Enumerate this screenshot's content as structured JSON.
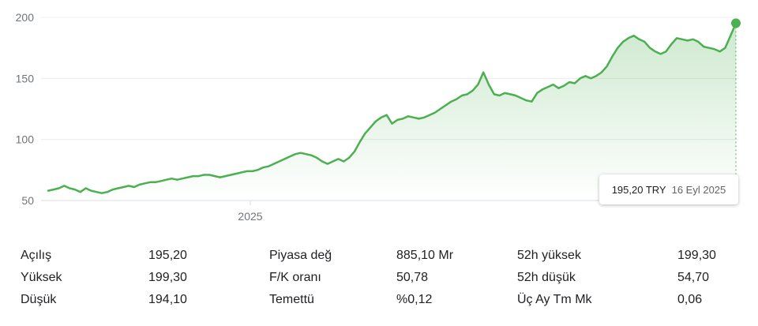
{
  "chart_data": {
    "type": "area",
    "ylim": [
      50,
      200
    ],
    "yticks": [
      50,
      100,
      150,
      200
    ],
    "xtick_labels": [
      "2025"
    ],
    "grid": true,
    "line_color": "#4caf50",
    "fill_color": "#4caf50",
    "values": [
      58,
      59,
      60,
      62,
      60,
      59,
      57,
      60,
      58,
      57,
      56,
      57,
      59,
      60,
      61,
      62,
      61,
      63,
      64,
      65,
      65,
      66,
      67,
      68,
      67,
      68,
      69,
      70,
      70,
      71,
      71,
      70,
      69,
      70,
      71,
      72,
      73,
      74,
      74,
      75,
      77,
      78,
      80,
      82,
      84,
      86,
      88,
      89,
      88,
      87,
      85,
      82,
      80,
      82,
      84,
      82,
      85,
      90,
      98,
      105,
      110,
      115,
      118,
      120,
      113,
      116,
      117,
      119,
      118,
      117,
      118,
      120,
      122,
      125,
      128,
      131,
      133,
      136,
      137,
      140,
      145,
      155,
      145,
      137,
      136,
      138,
      137,
      136,
      134,
      132,
      131,
      138,
      141,
      143,
      145,
      142,
      144,
      147,
      146,
      150,
      152,
      150,
      152,
      155,
      160,
      168,
      175,
      180,
      183,
      185,
      182,
      180,
      175,
      172,
      170,
      172,
      178,
      183,
      182,
      181,
      182,
      180,
      176,
      175,
      174,
      172,
      175,
      185,
      195.2
    ]
  },
  "tooltip": {
    "price": "195,20 TRY",
    "date": "16 Eyl 2025"
  },
  "stats": {
    "col1": [
      {
        "label": "Açılış",
        "value": "195,20"
      },
      {
        "label": "Yüksek",
        "value": "199,30"
      },
      {
        "label": "Düşük",
        "value": "194,10"
      }
    ],
    "col2": [
      {
        "label": "Piyasa değ",
        "value": "885,10 Mr"
      },
      {
        "label": "F/K oranı",
        "value": "50,78"
      },
      {
        "label": "Temettü",
        "value": "%0,12"
      }
    ],
    "col3": [
      {
        "label": "52h yüksek",
        "value": "199,30"
      },
      {
        "label": "52h düşük",
        "value": "54,70"
      },
      {
        "label": "Üç Ay Tm Mk",
        "value": "0,06"
      }
    ]
  }
}
